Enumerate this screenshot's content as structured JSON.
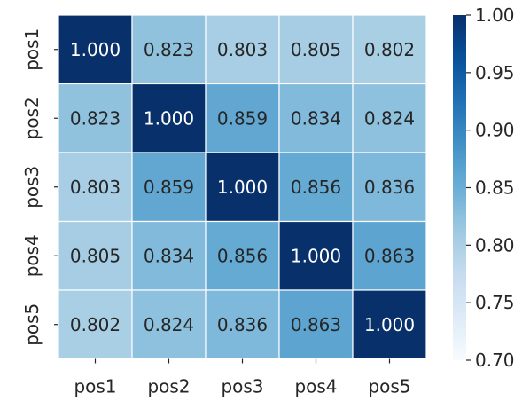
{
  "chart_data": {
    "type": "heatmap",
    "title": "",
    "xlabel": "",
    "ylabel": "",
    "x_categories": [
      "pos1",
      "pos2",
      "pos3",
      "pos4",
      "pos5"
    ],
    "y_categories": [
      "pos1",
      "pos2",
      "pos3",
      "pos4",
      "pos5"
    ],
    "values": [
      [
        1.0,
        0.823,
        0.803,
        0.805,
        0.802
      ],
      [
        0.823,
        1.0,
        0.859,
        0.834,
        0.824
      ],
      [
        0.803,
        0.859,
        1.0,
        0.856,
        0.836
      ],
      [
        0.805,
        0.834,
        0.856,
        1.0,
        0.863
      ],
      [
        0.802,
        0.824,
        0.836,
        0.863,
        1.0
      ]
    ],
    "value_format": "0.000",
    "colorbar": {
      "range": [
        0.7,
        1.0
      ],
      "ticks": [
        "0.70",
        "0.75",
        "0.80",
        "0.85",
        "0.90",
        "0.95",
        "1.00"
      ],
      "colormap": "Blues",
      "placement": "right"
    },
    "cell_border_color": "#ffffff",
    "grid": false,
    "legend": "none"
  }
}
